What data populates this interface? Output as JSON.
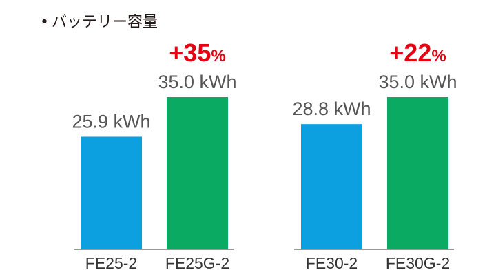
{
  "title": "バッテリー容量",
  "colors": {
    "base": "#0ca0e0",
    "upgrade": "#0aaa62",
    "accent": "#e60012",
    "axis": "#333333"
  },
  "chart_data": {
    "type": "bar",
    "unit": "kWh",
    "ylim": [
      0,
      35.0
    ],
    "groups": [
      {
        "change": "+35",
        "change_unit": "%",
        "bars": [
          {
            "category": "FE25-2",
            "value": 25.9,
            "label": "25.9 kWh",
            "role": "base"
          },
          {
            "category": "FE25G-2",
            "value": 35.0,
            "label": "35.0 kWh",
            "role": "upgrade"
          }
        ]
      },
      {
        "change": "+22",
        "change_unit": "%",
        "bars": [
          {
            "category": "FE30-2",
            "value": 28.8,
            "label": "28.8 kWh",
            "role": "base"
          },
          {
            "category": "FE30G-2",
            "value": 35.0,
            "label": "35.0 kWh",
            "role": "upgrade"
          }
        ]
      }
    ]
  }
}
